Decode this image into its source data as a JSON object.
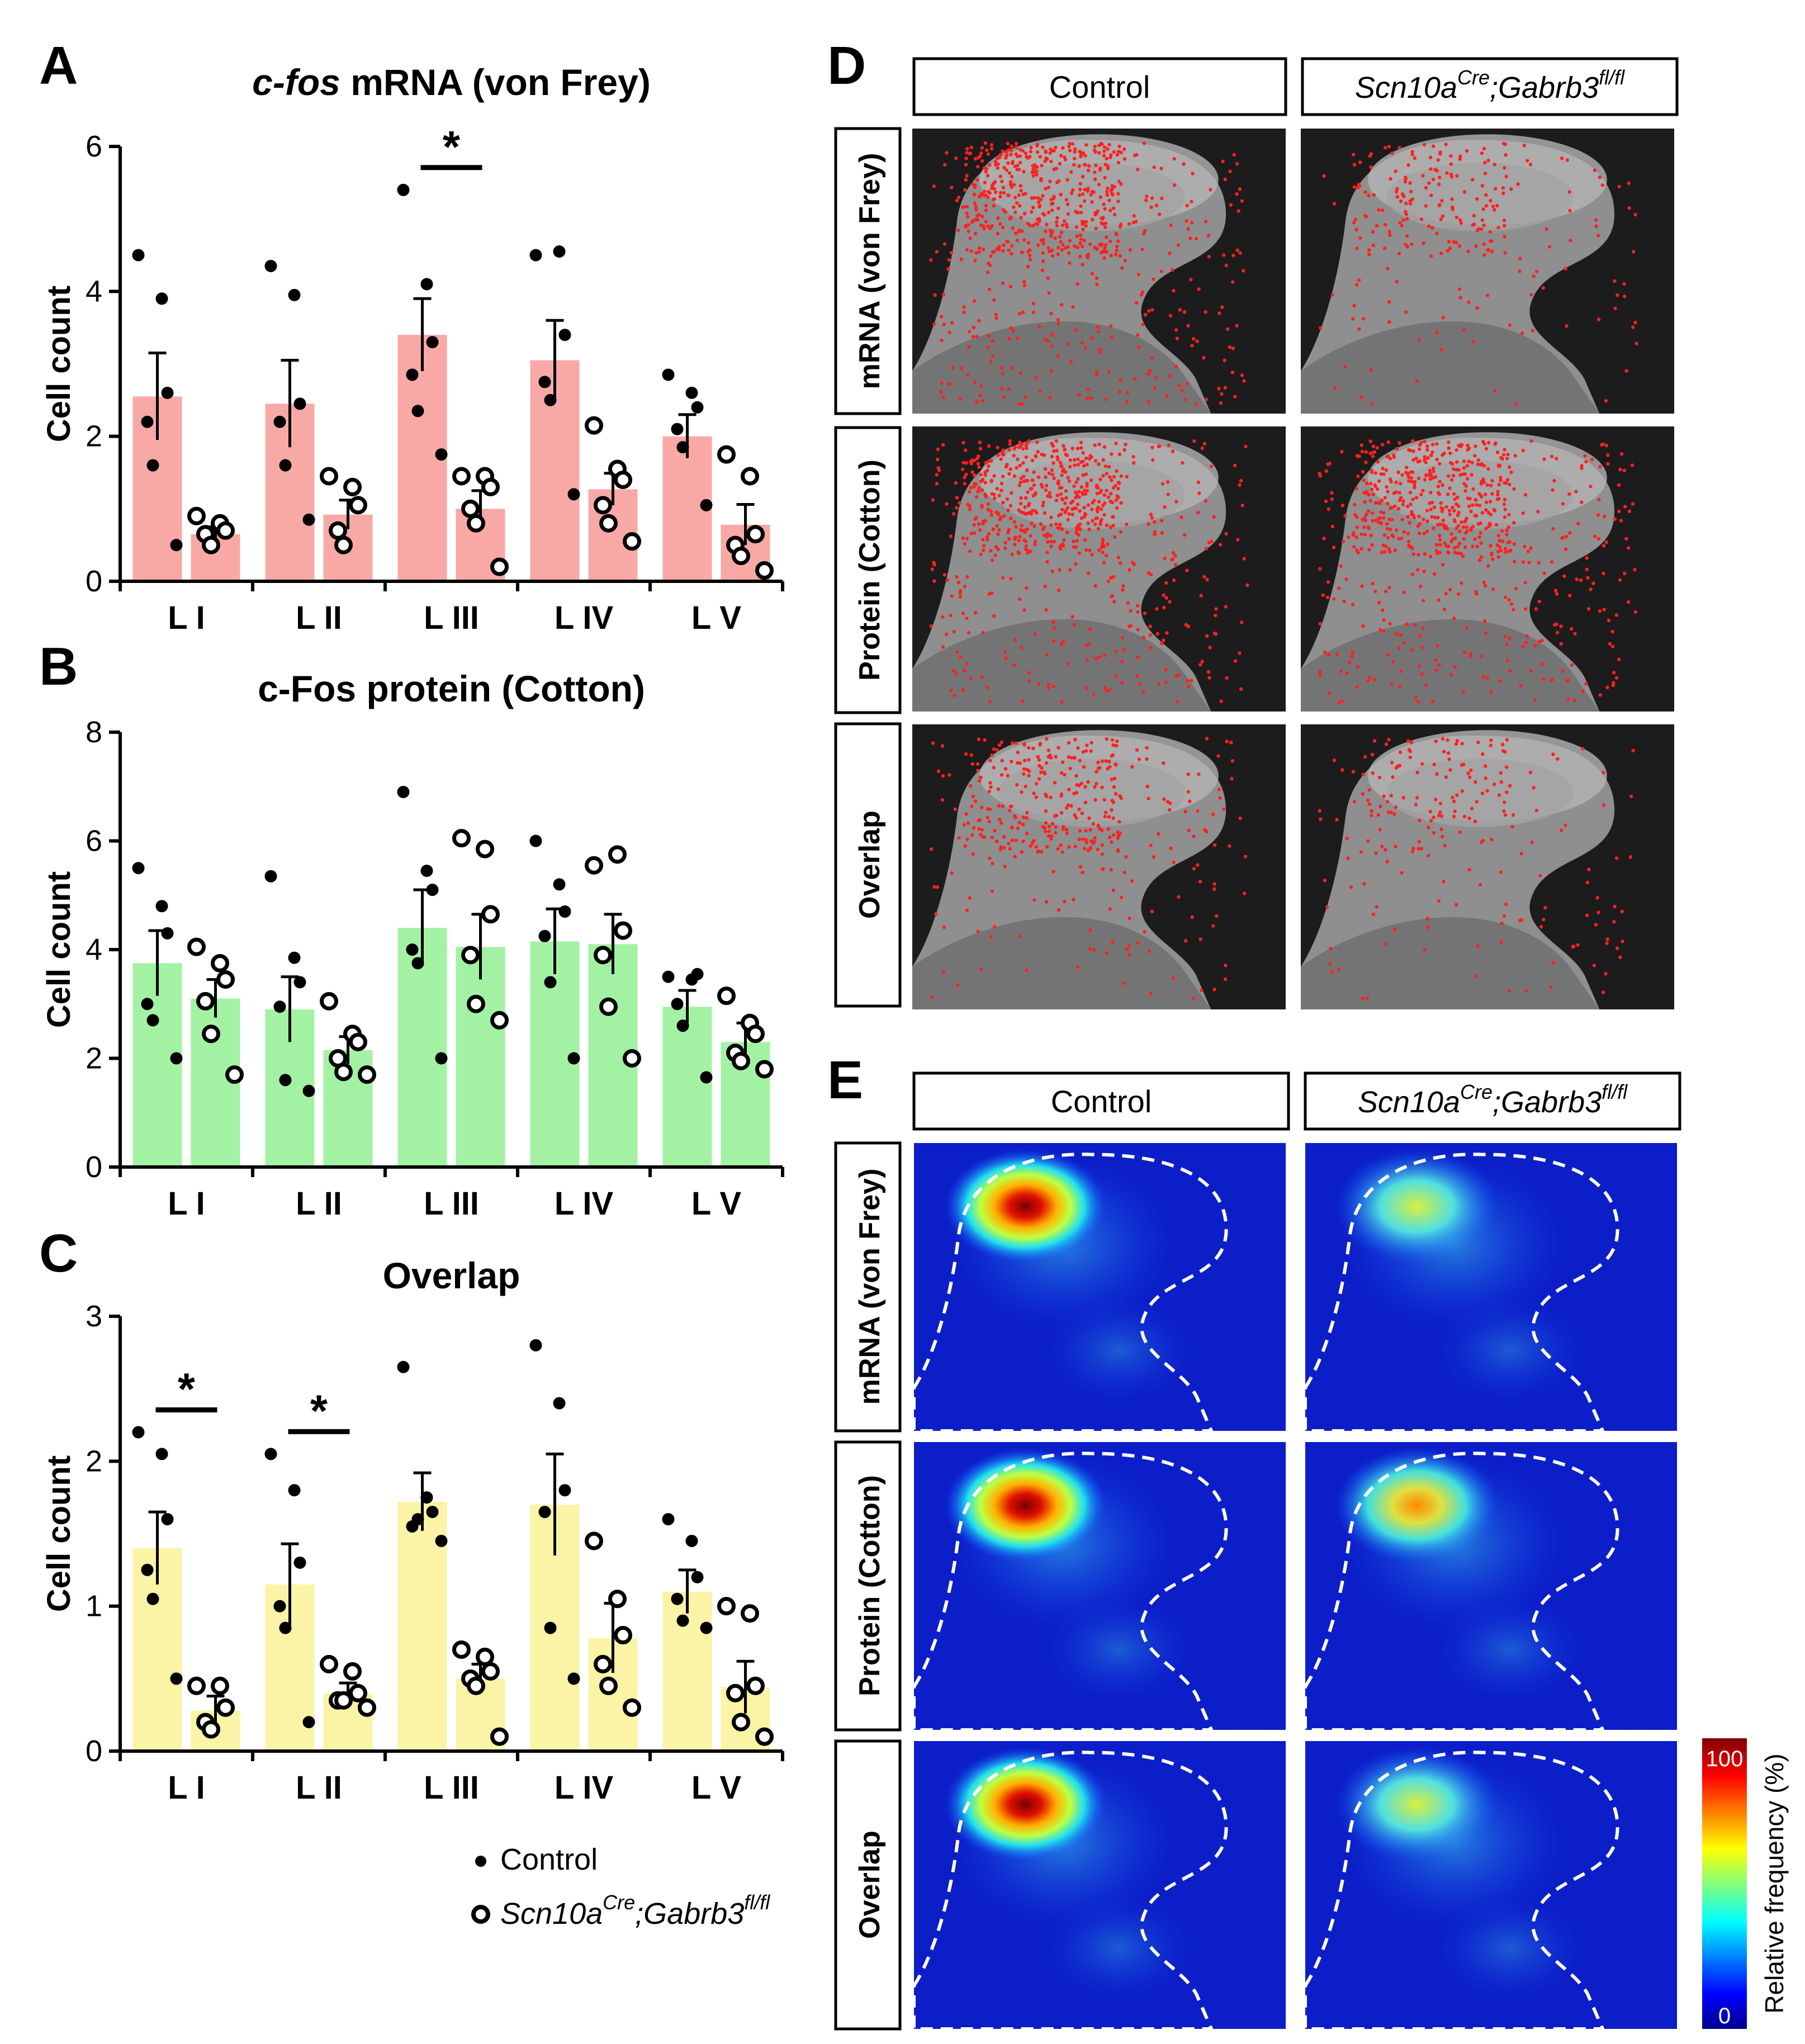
{
  "figure": {
    "panel_letters": {
      "A": "A",
      "B": "B",
      "C": "C",
      "D": "D",
      "E": "E"
    },
    "legend": {
      "control": "Control",
      "mutant_base": "Scn10a",
      "mutant_sup1": "Cre",
      "mutant_mid": ";Gabrb3",
      "mutant_sup2": "fl/fl"
    }
  },
  "colors": {
    "bar_A": "#f8a9a6",
    "bar_B": "#a3f2a3",
    "bar_C": "#fbf3a6",
    "dot": "#000000",
    "dot_red": "#ff2020",
    "tissue_bg": "#1c1c1c"
  },
  "chart_data": [
    {
      "id": "A",
      "type": "bar",
      "title_italic": "c-fos",
      "title_rest": " mRNA (von Frey)",
      "ylabel": "Cell count",
      "ylim": [
        0,
        6
      ],
      "yticks": [
        0,
        2,
        4,
        6
      ],
      "categories": [
        "L I",
        "L II",
        "L III",
        "L IV",
        "L V"
      ],
      "series": [
        {
          "name": "Control",
          "values": [
            2.55,
            2.45,
            3.4,
            3.05,
            2.0
          ],
          "sem": [
            0.6,
            0.6,
            0.5,
            0.55,
            0.3
          ],
          "points": [
            [
              4.5,
              3.9,
              2.6,
              2.2,
              1.6,
              0.5
            ],
            [
              4.35,
              3.95,
              2.45,
              2.2,
              1.6,
              0.85
            ],
            [
              5.4,
              4.1,
              3.3,
              2.85,
              2.35,
              1.75
            ],
            [
              4.5,
              4.55,
              3.4,
              2.75,
              2.5,
              1.2
            ],
            [
              2.85,
              2.6,
              2.4,
              2.1,
              1.85,
              1.05
            ]
          ]
        },
        {
          "name": "Scn10a Cre;Gabrb3 fl/fl",
          "values": [
            0.65,
            0.92,
            1.0,
            1.27,
            0.78
          ],
          "sem": [
            0.1,
            0.2,
            0.25,
            0.22,
            0.28
          ],
          "points": [
            [
              0.9,
              0.8,
              0.7,
              0.65,
              0.5
            ],
            [
              1.45,
              1.3,
              1.05,
              0.7,
              0.5
            ],
            [
              1.45,
              1.45,
              1.3,
              1.0,
              0.8,
              0.2
            ],
            [
              2.15,
              1.55,
              1.4,
              1.05,
              0.8,
              0.55
            ],
            [
              1.75,
              1.45,
              0.65,
              0.5,
              0.35,
              0.15
            ]
          ]
        }
      ],
      "significance": [
        {
          "group": 2,
          "label": "*"
        }
      ]
    },
    {
      "id": "B",
      "type": "bar",
      "title_italic": "",
      "title_rest": "c-Fos protein (Cotton)",
      "ylabel": "Cell count",
      "ylim": [
        0,
        8
      ],
      "yticks": [
        0,
        2,
        4,
        6,
        8
      ],
      "categories": [
        "L I",
        "L II",
        "L III",
        "L IV",
        "L V"
      ],
      "series": [
        {
          "name": "Control",
          "values": [
            3.75,
            2.9,
            4.4,
            4.15,
            2.95
          ],
          "sem": [
            0.6,
            0.6,
            0.7,
            0.6,
            0.3
          ],
          "points": [
            [
              5.5,
              4.8,
              4.3,
              3.0,
              2.7,
              2.0
            ],
            [
              5.35,
              3.85,
              3.4,
              2.95,
              1.6,
              1.4
            ],
            [
              6.9,
              5.45,
              5.1,
              4.0,
              3.75,
              2.0
            ],
            [
              6.0,
              5.2,
              4.7,
              4.25,
              3.4,
              2.0
            ],
            [
              3.5,
              3.45,
              3.55,
              3.0,
              2.6,
              1.65
            ]
          ]
        },
        {
          "name": "Scn10a Cre;Gabrb3 fl/fl",
          "values": [
            3.1,
            2.15,
            4.05,
            4.1,
            2.3
          ],
          "sem": [
            0.35,
            0.25,
            0.6,
            0.55,
            0.35
          ],
          "points": [
            [
              4.05,
              3.75,
              3.45,
              3.05,
              2.45,
              1.7
            ],
            [
              3.05,
              2.45,
              2.3,
              2.0,
              1.75,
              1.7
            ],
            [
              6.05,
              5.85,
              4.65,
              3.9,
              3.0,
              2.7
            ],
            [
              5.55,
              5.75,
              4.35,
              3.9,
              2.95,
              2.0
            ],
            [
              3.15,
              2.65,
              2.45,
              2.1,
              1.95,
              1.8
            ]
          ]
        }
      ],
      "significance": []
    },
    {
      "id": "C",
      "type": "bar",
      "title_italic": "",
      "title_rest": "Overlap",
      "ylabel": "Cell count",
      "ylim": [
        0,
        3
      ],
      "yticks": [
        0,
        1,
        2,
        3
      ],
      "categories": [
        "L I",
        "L II",
        "L III",
        "L IV",
        "L V"
      ],
      "series": [
        {
          "name": "Control",
          "values": [
            1.4,
            1.15,
            1.72,
            1.7,
            1.1
          ],
          "sem": [
            0.25,
            0.28,
            0.2,
            0.35,
            0.15
          ],
          "points": [
            [
              2.2,
              2.05,
              1.6,
              1.25,
              1.05,
              0.5
            ],
            [
              2.05,
              1.8,
              1.3,
              1.0,
              0.85,
              0.2
            ],
            [
              2.65,
              1.75,
              1.65,
              1.55,
              1.6,
              1.45
            ],
            [
              2.8,
              2.4,
              1.8,
              1.65,
              0.85,
              0.5
            ],
            [
              1.6,
              1.45,
              1.2,
              1.05,
              0.9,
              0.85
            ]
          ]
        },
        {
          "name": "Scn10a Cre;Gabrb3 fl/fl",
          "values": [
            0.28,
            0.4,
            0.5,
            0.78,
            0.44
          ],
          "sem": [
            0.1,
            0.07,
            0.1,
            0.24,
            0.18
          ],
          "points": [
            [
              0.45,
              0.45,
              0.3,
              0.2,
              0.15
            ],
            [
              0.6,
              0.55,
              0.4,
              0.35,
              0.35,
              0.3
            ],
            [
              0.7,
              0.65,
              0.55,
              0.5,
              0.45,
              0.1
            ],
            [
              1.45,
              1.05,
              0.8,
              0.6,
              0.45,
              0.3
            ],
            [
              1.0,
              0.95,
              0.45,
              0.4,
              0.2,
              0.1
            ]
          ]
        }
      ],
      "significance": [
        {
          "group": 0,
          "label": "*"
        },
        {
          "group": 1,
          "label": "*"
        }
      ]
    },
    {
      "id": "D",
      "type": "other",
      "column_headers": [
        "Control",
        "Scn10a Cre;Gabrb3 fl/fl"
      ],
      "row_labels": [
        "mRNA (von Frey)",
        "Protein (Cotton)",
        "Overlap"
      ],
      "cell_densities": [
        [
          1.0,
          0.35
        ],
        [
          1.0,
          1.0
        ],
        [
          0.55,
          0.3
        ]
      ]
    },
    {
      "id": "E",
      "type": "heatmap",
      "column_headers": [
        "Control",
        "Scn10a Cre;Gabrb3 fl/fl"
      ],
      "row_labels": [
        "mRNA (von Frey)",
        "Protein (Cotton)",
        "Overlap"
      ],
      "hotspot_peak_percent": [
        [
          100,
          60
        ],
        [
          100,
          75
        ],
        [
          100,
          68
        ]
      ],
      "colorbar": {
        "label": "Relative frequency (%)",
        "max_label": "100",
        "min_label": "0",
        "range": [
          0,
          100
        ]
      }
    }
  ]
}
